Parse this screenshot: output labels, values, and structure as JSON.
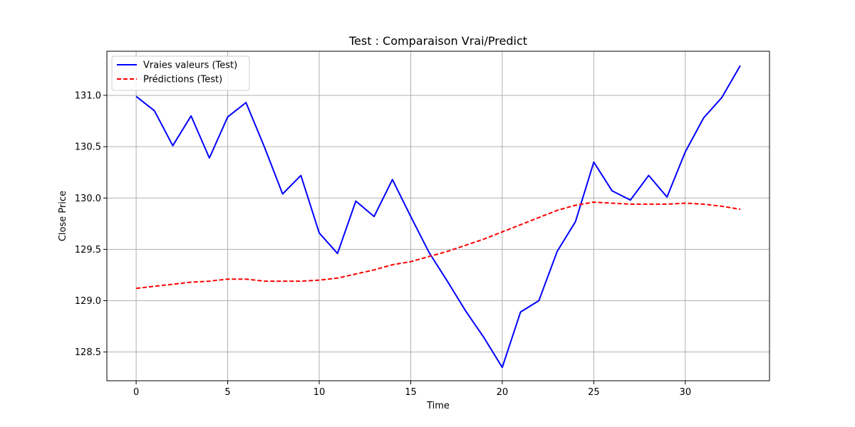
{
  "chart_data": {
    "type": "line",
    "title": "Test : Comparaison Vrai/Predict",
    "xlabel": "Time",
    "ylabel": "Close Price",
    "xlim": [
      -1.6,
      34.6
    ],
    "ylim": [
      128.22,
      131.43
    ],
    "xticks": [
      0,
      5,
      10,
      15,
      20,
      25,
      30
    ],
    "yticks": [
      128.5,
      129.0,
      129.5,
      130.0,
      130.5,
      131.0
    ],
    "ytick_labels": [
      "128.5",
      "129.0",
      "129.5",
      "130.0",
      "130.5",
      "131.0"
    ],
    "grid": true,
    "legend_position": "top-left",
    "x": [
      0,
      1,
      2,
      3,
      4,
      5,
      6,
      7,
      8,
      9,
      10,
      11,
      12,
      13,
      14,
      15,
      16,
      17,
      18,
      19,
      20,
      21,
      22,
      23,
      24,
      25,
      26,
      27,
      28,
      29,
      30,
      31,
      32,
      33
    ],
    "series": [
      {
        "name": "Vraies valeurs (Test)",
        "color": "#0000ff",
        "style": "solid",
        "values": [
          130.99,
          130.85,
          130.51,
          130.8,
          130.39,
          130.79,
          130.93,
          130.5,
          130.04,
          130.22,
          129.66,
          129.46,
          129.97,
          129.82,
          130.18,
          129.82,
          129.47,
          129.19,
          128.9,
          128.64,
          128.35,
          128.89,
          129.0,
          129.48,
          129.77,
          130.35,
          130.07,
          129.98,
          130.22,
          130.01,
          130.45,
          130.78,
          130.98,
          131.29
        ]
      },
      {
        "name": "Prédictions (Test)",
        "color": "#ff0000",
        "style": "dashed",
        "values": [
          129.12,
          129.14,
          129.16,
          129.18,
          129.19,
          129.21,
          129.21,
          129.19,
          129.19,
          129.19,
          129.2,
          129.22,
          129.26,
          129.3,
          129.35,
          129.38,
          129.43,
          129.48,
          129.54,
          129.6,
          129.67,
          129.74,
          129.81,
          129.88,
          129.93,
          129.96,
          129.95,
          129.94,
          129.94,
          129.94,
          129.95,
          129.94,
          129.92,
          129.89
        ]
      }
    ]
  }
}
